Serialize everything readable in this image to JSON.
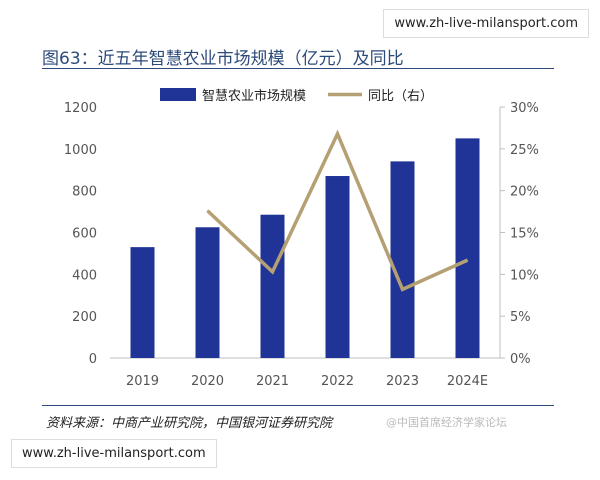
{
  "banners": {
    "top": "www.zh-live-milansport.com",
    "bottom": "www.zh-live-milansport.com"
  },
  "figure": {
    "title": "图63：近五年智慧农业市场规模（亿元）及同比",
    "source": "资料来源：中商产业研究院，中国银河证券研究院",
    "watermark": "@中国首席经济学家论坛"
  },
  "colors": {
    "bar": "#1f3496",
    "line": "#b5a074",
    "axis": "#bfbfbf"
  },
  "chart_data": {
    "type": "bar",
    "categories": [
      "2019",
      "2020",
      "2021",
      "2022",
      "2023",
      "2024E"
    ],
    "series": [
      {
        "name": "智慧农业市场规模",
        "type": "bar",
        "axis": "left",
        "values": [
          530,
          625,
          685,
          870,
          940,
          1050
        ]
      },
      {
        "name": "同比（右）",
        "type": "line",
        "axis": "right",
        "values": [
          null,
          17.6,
          10.3,
          26.8,
          8.2,
          11.7
        ]
      }
    ],
    "y_left": {
      "min": 0,
      "max": 1200,
      "ticks": [
        "0",
        "200",
        "400",
        "600",
        "800",
        "1000",
        "1200"
      ]
    },
    "y_right": {
      "min": 0,
      "max": 30,
      "ticks": [
        "0%",
        "5%",
        "10%",
        "15%",
        "20%",
        "25%",
        "30%"
      ]
    },
    "legend_position": "top-center",
    "grid": false
  }
}
